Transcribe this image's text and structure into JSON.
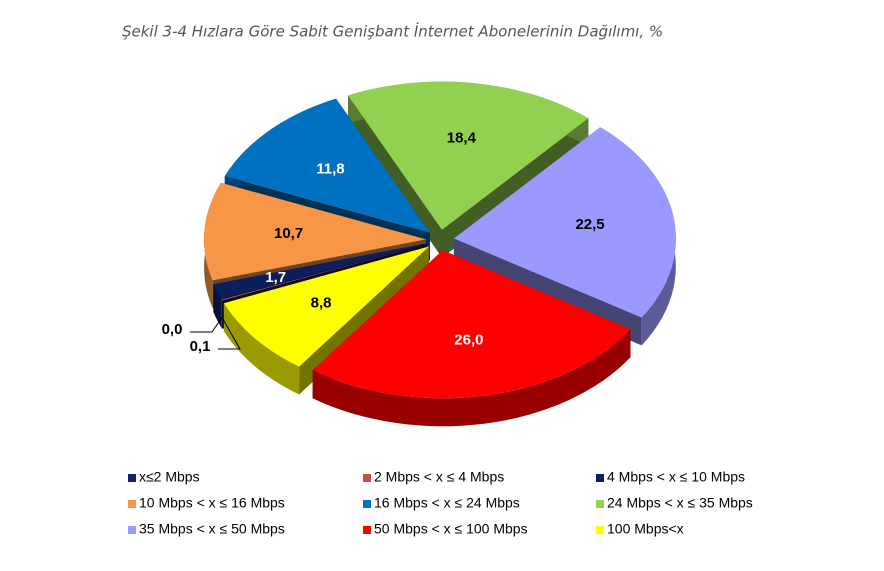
{
  "chart_data": {
    "type": "pie3d",
    "title": "Şekil 3-4 Hızlara Göre Sabit Genişbant İnternet Abonelerinin Dağılımı, %",
    "categories": [
      "x≤2 Mbps",
      "2 Mbps < x ≤ 4 Mbps",
      "4 Mbps < x ≤ 10 Mbps",
      "10 Mbps < x ≤ 16 Mbps",
      "16 Mbps < x ≤ 24 Mbps",
      "24 Mbps < x ≤ 35 Mbps",
      "35 Mbps < x ≤ 50 Mbps",
      "50 Mbps < x ≤ 100 Mbps",
      "100 Mbps<x"
    ],
    "values": [
      0.0,
      0.1,
      1.7,
      10.7,
      11.8,
      18.4,
      22.5,
      26.0,
      8.8
    ],
    "value_labels": [
      "0,0",
      "0,1",
      "1,7",
      "10,7",
      "11,8",
      "18,4",
      "22,5",
      "26,0",
      "8,8"
    ],
    "colors": [
      "#10206a",
      "#c0504d",
      "#0a1f5c",
      "#f79646",
      "#0070c0",
      "#92d050",
      "#9999ff",
      "#ff0000",
      "#ffff00"
    ],
    "legend": "bottom"
  }
}
